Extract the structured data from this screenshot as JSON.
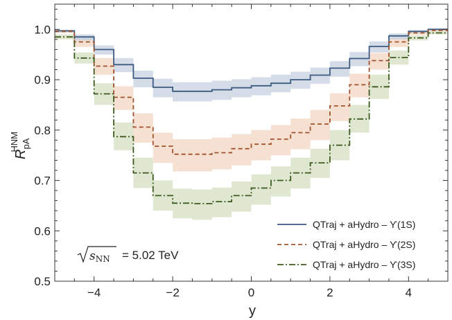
{
  "chart_data": {
    "type": "line",
    "xlabel": "y",
    "ylabel": {
      "base": "R",
      "sub": "pA",
      "sup": "HNM"
    },
    "xlim": [
      -5,
      5
    ],
    "ylim": [
      0.5,
      1.05
    ],
    "xticks": [
      -4,
      -2,
      0,
      2,
      4
    ],
    "xtick_labels": [
      "−4",
      "−2",
      "0",
      "2",
      "4"
    ],
    "yticks": [
      0.5,
      0.6,
      0.7,
      0.8,
      0.9,
      1.0
    ],
    "ytick_labels": [
      "0.5",
      "0.6",
      "0.7",
      "0.8",
      "0.9",
      "1.0"
    ],
    "legend_position": "bottom-right",
    "bin_edges": [
      -5,
      -4.5,
      -4,
      -3.5,
      -3,
      -2.5,
      -2,
      -1.5,
      -1,
      -0.5,
      0,
      0.5,
      1,
      1.5,
      2,
      2.5,
      3,
      3.5,
      4,
      4.5,
      5
    ],
    "series": [
      {
        "name": "QTraj + aHydro – ϒ(1S)",
        "color": "#3d5a80",
        "fill": "#c5d0e0",
        "dash": "solid",
        "values": [
          0.997,
          0.985,
          0.96,
          0.93,
          0.903,
          0.885,
          0.877,
          0.877,
          0.88,
          0.884,
          0.888,
          0.893,
          0.9,
          0.909,
          0.923,
          0.942,
          0.966,
          0.987,
          0.996,
          1.0
        ],
        "lower": [
          0.994,
          0.978,
          0.95,
          0.915,
          0.885,
          0.865,
          0.857,
          0.857,
          0.86,
          0.865,
          0.869,
          0.875,
          0.882,
          0.892,
          0.906,
          0.927,
          0.954,
          0.98,
          0.993,
          0.998
        ],
        "upper": [
          0.999,
          0.99,
          0.968,
          0.943,
          0.918,
          0.902,
          0.895,
          0.895,
          0.898,
          0.901,
          0.905,
          0.91,
          0.916,
          0.924,
          0.937,
          0.955,
          0.976,
          0.992,
          0.998,
          1.002
        ]
      },
      {
        "name": "QTraj + aHydro – ϒ(2S)",
        "color": "#a0522d",
        "fill": "#f1d5c2",
        "dash": "dashed",
        "values": [
          0.996,
          0.975,
          0.927,
          0.865,
          0.806,
          0.768,
          0.752,
          0.752,
          0.755,
          0.763,
          0.772,
          0.782,
          0.795,
          0.812,
          0.848,
          0.89,
          0.938,
          0.975,
          0.993,
          0.998
        ],
        "lower": [
          0.993,
          0.965,
          0.91,
          0.84,
          0.775,
          0.735,
          0.718,
          0.718,
          0.722,
          0.73,
          0.74,
          0.75,
          0.762,
          0.78,
          0.818,
          0.865,
          0.92,
          0.965,
          0.989,
          0.996
        ],
        "upper": [
          0.999,
          0.983,
          0.943,
          0.887,
          0.833,
          0.795,
          0.782,
          0.782,
          0.785,
          0.792,
          0.8,
          0.81,
          0.823,
          0.84,
          0.873,
          0.912,
          0.953,
          0.984,
          0.997,
          1.0
        ]
      },
      {
        "name": "QTraj + aHydro – ϒ(3S)",
        "color": "#3d5a1e",
        "fill": "#d4dfc2",
        "dash": "dashdot",
        "values": [
          0.985,
          0.943,
          0.872,
          0.787,
          0.715,
          0.67,
          0.655,
          0.654,
          0.658,
          0.67,
          0.685,
          0.7,
          0.715,
          0.735,
          0.77,
          0.822,
          0.886,
          0.944,
          0.983,
          0.993
        ],
        "lower": [
          0.98,
          0.932,
          0.85,
          0.76,
          0.685,
          0.64,
          0.625,
          0.622,
          0.627,
          0.638,
          0.652,
          0.668,
          0.684,
          0.705,
          0.74,
          0.795,
          0.862,
          0.93,
          0.978,
          0.99
        ],
        "upper": [
          0.99,
          0.954,
          0.893,
          0.815,
          0.745,
          0.7,
          0.684,
          0.682,
          0.686,
          0.698,
          0.712,
          0.728,
          0.745,
          0.763,
          0.8,
          0.85,
          0.91,
          0.958,
          0.988,
          0.996
        ]
      }
    ],
    "annotation": {
      "sqrt_label": "s",
      "sqrt_sub": "NN",
      "value_text": "= 5.02  TeV"
    }
  }
}
